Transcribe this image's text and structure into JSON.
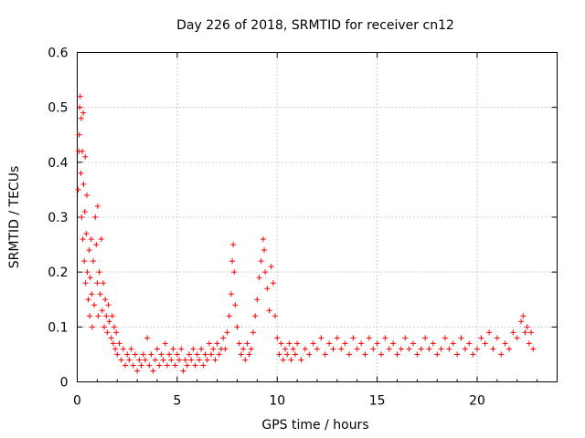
{
  "chart_data": {
    "type": "scatter",
    "title": "Day 226 of 2018, SRMTID for receiver cn12",
    "xlabel": "GPS time / hours",
    "ylabel": "SRMTID / TECUs",
    "xlim": [
      0,
      24
    ],
    "ylim": [
      0,
      0.6
    ],
    "xticks": [
      0,
      5,
      10,
      15,
      20
    ],
    "xtick_labels": [
      "0",
      "5",
      "10",
      "15",
      "20"
    ],
    "yticks": [
      0,
      0.1,
      0.2,
      0.3,
      0.4,
      0.5,
      0.6
    ],
    "ytick_labels": [
      "0",
      "0.1",
      "0.2",
      "0.3",
      "0.4",
      "0.5",
      "0.6"
    ],
    "grid": true,
    "marker": "+",
    "color": "#ff0000",
    "series": [
      {
        "name": "SRMTID",
        "points": [
          [
            0.05,
            0.35
          ],
          [
            0.08,
            0.42
          ],
          [
            0.1,
            0.45
          ],
          [
            0.12,
            0.5
          ],
          [
            0.15,
            0.52
          ],
          [
            0.18,
            0.38
          ],
          [
            0.2,
            0.48
          ],
          [
            0.22,
            0.3
          ],
          [
            0.25,
            0.42
          ],
          [
            0.28,
            0.26
          ],
          [
            0.3,
            0.49
          ],
          [
            0.32,
            0.36
          ],
          [
            0.35,
            0.22
          ],
          [
            0.38,
            0.31
          ],
          [
            0.4,
            0.41
          ],
          [
            0.42,
            0.18
          ],
          [
            0.45,
            0.27
          ],
          [
            0.48,
            0.34
          ],
          [
            0.5,
            0.2
          ],
          [
            0.55,
            0.15
          ],
          [
            0.6,
            0.24
          ],
          [
            0.62,
            0.12
          ],
          [
            0.65,
            0.19
          ],
          [
            0.7,
            0.26
          ],
          [
            0.72,
            0.16
          ],
          [
            0.75,
            0.1
          ],
          [
            0.8,
            0.22
          ],
          [
            0.85,
            0.14
          ],
          [
            0.9,
            0.3
          ],
          [
            0.95,
            0.25
          ],
          [
            1.0,
            0.18
          ],
          [
            1.02,
            0.32
          ],
          [
            1.05,
            0.12
          ],
          [
            1.1,
            0.2
          ],
          [
            1.15,
            0.16
          ],
          [
            1.2,
            0.26
          ],
          [
            1.25,
            0.13
          ],
          [
            1.3,
            0.18
          ],
          [
            1.35,
            0.1
          ],
          [
            1.4,
            0.15
          ],
          [
            1.45,
            0.12
          ],
          [
            1.5,
            0.09
          ],
          [
            1.55,
            0.14
          ],
          [
            1.6,
            0.11
          ],
          [
            1.7,
            0.08
          ],
          [
            1.75,
            0.12
          ],
          [
            1.8,
            0.07
          ],
          [
            1.85,
            0.1
          ],
          [
            1.9,
            0.06
          ],
          [
            1.95,
            0.09
          ],
          [
            2.0,
            0.05
          ],
          [
            2.1,
            0.07
          ],
          [
            2.2,
            0.04
          ],
          [
            2.3,
            0.06
          ],
          [
            2.4,
            0.03
          ],
          [
            2.5,
            0.05
          ],
          [
            2.6,
            0.04
          ],
          [
            2.7,
            0.06
          ],
          [
            2.8,
            0.03
          ],
          [
            2.9,
            0.05
          ],
          [
            3.0,
            0.02
          ],
          [
            3.1,
            0.04
          ],
          [
            3.2,
            0.03
          ],
          [
            3.3,
            0.05
          ],
          [
            3.4,
            0.04
          ],
          [
            3.5,
            0.08
          ],
          [
            3.6,
            0.03
          ],
          [
            3.7,
            0.05
          ],
          [
            3.8,
            0.02
          ],
          [
            3.9,
            0.04
          ],
          [
            4.0,
            0.06
          ],
          [
            4.1,
            0.03
          ],
          [
            4.2,
            0.05
          ],
          [
            4.3,
            0.04
          ],
          [
            4.4,
            0.07
          ],
          [
            4.5,
            0.03
          ],
          [
            4.6,
            0.05
          ],
          [
            4.7,
            0.04
          ],
          [
            4.8,
            0.06
          ],
          [
            4.9,
            0.03
          ],
          [
            5.0,
            0.05
          ],
          [
            5.1,
            0.04
          ],
          [
            5.2,
            0.06
          ],
          [
            5.3,
            0.02
          ],
          [
            5.4,
            0.04
          ],
          [
            5.5,
            0.03
          ],
          [
            5.6,
            0.05
          ],
          [
            5.7,
            0.04
          ],
          [
            5.8,
            0.06
          ],
          [
            5.9,
            0.03
          ],
          [
            6.0,
            0.05
          ],
          [
            6.1,
            0.04
          ],
          [
            6.2,
            0.06
          ],
          [
            6.3,
            0.03
          ],
          [
            6.4,
            0.05
          ],
          [
            6.5,
            0.04
          ],
          [
            6.6,
            0.07
          ],
          [
            6.7,
            0.05
          ],
          [
            6.8,
            0.06
          ],
          [
            6.9,
            0.04
          ],
          [
            7.0,
            0.07
          ],
          [
            7.1,
            0.05
          ],
          [
            7.2,
            0.06
          ],
          [
            7.3,
            0.08
          ],
          [
            7.4,
            0.06
          ],
          [
            7.5,
            0.09
          ],
          [
            7.6,
            0.12
          ],
          [
            7.7,
            0.16
          ],
          [
            7.75,
            0.22
          ],
          [
            7.8,
            0.25
          ],
          [
            7.85,
            0.2
          ],
          [
            7.9,
            0.14
          ],
          [
            8.0,
            0.1
          ],
          [
            8.1,
            0.07
          ],
          [
            8.2,
            0.05
          ],
          [
            8.3,
            0.06
          ],
          [
            8.4,
            0.04
          ],
          [
            8.5,
            0.07
          ],
          [
            8.6,
            0.05
          ],
          [
            8.7,
            0.06
          ],
          [
            8.8,
            0.09
          ],
          [
            8.9,
            0.12
          ],
          [
            9.0,
            0.15
          ],
          [
            9.1,
            0.19
          ],
          [
            9.2,
            0.22
          ],
          [
            9.3,
            0.26
          ],
          [
            9.35,
            0.24
          ],
          [
            9.4,
            0.2
          ],
          [
            9.5,
            0.17
          ],
          [
            9.6,
            0.13
          ],
          [
            9.7,
            0.21
          ],
          [
            9.8,
            0.18
          ],
          [
            9.9,
            0.12
          ],
          [
            10.0,
            0.08
          ],
          [
            10.1,
            0.05
          ],
          [
            10.2,
            0.07
          ],
          [
            10.3,
            0.04
          ],
          [
            10.4,
            0.06
          ],
          [
            10.5,
            0.05
          ],
          [
            10.6,
            0.07
          ],
          [
            10.7,
            0.04
          ],
          [
            10.8,
            0.06
          ],
          [
            10.9,
            0.05
          ],
          [
            11.0,
            0.07
          ],
          [
            11.2,
            0.04
          ],
          [
            11.4,
            0.06
          ],
          [
            11.6,
            0.05
          ],
          [
            11.8,
            0.07
          ],
          [
            12.0,
            0.06
          ],
          [
            12.2,
            0.08
          ],
          [
            12.4,
            0.05
          ],
          [
            12.6,
            0.07
          ],
          [
            12.8,
            0.06
          ],
          [
            13.0,
            0.08
          ],
          [
            13.2,
            0.06
          ],
          [
            13.4,
            0.07
          ],
          [
            13.6,
            0.05
          ],
          [
            13.8,
            0.08
          ],
          [
            14.0,
            0.06
          ],
          [
            14.2,
            0.07
          ],
          [
            14.4,
            0.05
          ],
          [
            14.6,
            0.08
          ],
          [
            14.8,
            0.06
          ],
          [
            15.0,
            0.07
          ],
          [
            15.2,
            0.05
          ],
          [
            15.4,
            0.08
          ],
          [
            15.6,
            0.06
          ],
          [
            15.8,
            0.07
          ],
          [
            16.0,
            0.05
          ],
          [
            16.2,
            0.06
          ],
          [
            16.4,
            0.08
          ],
          [
            16.6,
            0.06
          ],
          [
            16.8,
            0.07
          ],
          [
            17.0,
            0.05
          ],
          [
            17.2,
            0.06
          ],
          [
            17.4,
            0.08
          ],
          [
            17.6,
            0.06
          ],
          [
            17.8,
            0.07
          ],
          [
            18.0,
            0.05
          ],
          [
            18.2,
            0.06
          ],
          [
            18.4,
            0.08
          ],
          [
            18.6,
            0.06
          ],
          [
            18.8,
            0.07
          ],
          [
            19.0,
            0.05
          ],
          [
            19.2,
            0.08
          ],
          [
            19.4,
            0.06
          ],
          [
            19.6,
            0.07
          ],
          [
            19.8,
            0.05
          ],
          [
            20.0,
            0.06
          ],
          [
            20.2,
            0.08
          ],
          [
            20.4,
            0.07
          ],
          [
            20.6,
            0.09
          ],
          [
            20.8,
            0.06
          ],
          [
            21.0,
            0.08
          ],
          [
            21.2,
            0.05
          ],
          [
            21.4,
            0.07
          ],
          [
            21.6,
            0.06
          ],
          [
            21.8,
            0.09
          ],
          [
            22.0,
            0.08
          ],
          [
            22.2,
            0.11
          ],
          [
            22.3,
            0.12
          ],
          [
            22.4,
            0.09
          ],
          [
            22.5,
            0.1
          ],
          [
            22.6,
            0.07
          ],
          [
            22.7,
            0.09
          ],
          [
            22.8,
            0.06
          ]
        ]
      }
    ]
  }
}
